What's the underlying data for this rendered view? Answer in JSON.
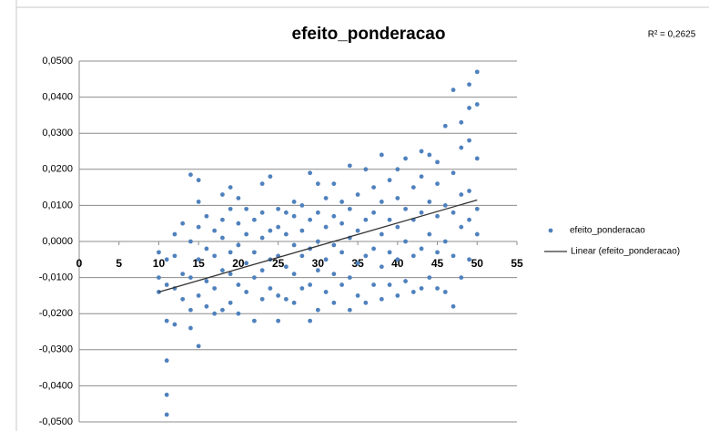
{
  "chart_data": {
    "type": "scatter",
    "title": "efeito_ponderacao",
    "annotation": "R² = 0,2625",
    "xlim": [
      0,
      55
    ],
    "xticks": [
      0,
      5,
      10,
      15,
      20,
      25,
      30,
      35,
      40,
      45,
      50,
      55
    ],
    "ylim": [
      -0.05,
      0.05
    ],
    "yticks": [
      {
        "value": -0.05,
        "label": "-0,0500"
      },
      {
        "value": -0.04,
        "label": "-0,0400"
      },
      {
        "value": -0.03,
        "label": "-0,0300"
      },
      {
        "value": -0.02,
        "label": "-0,0200"
      },
      {
        "value": -0.01,
        "label": "-0,0100"
      },
      {
        "value": 0,
        "label": "0,0000"
      },
      {
        "value": 0.01,
        "label": "0,0100"
      },
      {
        "value": 0.02,
        "label": "0,0200"
      },
      {
        "value": 0.03,
        "label": "0,0300"
      },
      {
        "value": 0.04,
        "label": "0,0400"
      },
      {
        "value": 0.05,
        "label": "0,0500"
      }
    ],
    "grid": true,
    "legend": "right",
    "series": [
      {
        "name": "efeito_ponderacao",
        "color": "#4f81bd",
        "x": [
          10,
          10,
          10,
          11,
          11,
          11,
          11,
          11,
          11,
          12,
          12,
          12,
          12,
          13,
          13,
          13,
          14,
          14,
          14,
          14,
          14,
          15,
          15,
          15,
          15,
          15,
          15,
          16,
          16,
          16,
          16,
          17,
          17,
          17,
          17,
          18,
          18,
          18,
          18,
          18,
          19,
          19,
          19,
          19,
          19,
          20,
          20,
          20,
          20,
          20,
          21,
          21,
          21,
          21,
          22,
          22,
          22,
          22,
          23,
          23,
          23,
          23,
          23,
          24,
          24,
          24,
          24,
          25,
          25,
          25,
          25,
          25,
          26,
          26,
          26,
          26,
          27,
          27,
          27,
          27,
          27,
          28,
          28,
          28,
          28,
          29,
          29,
          29,
          29,
          29,
          30,
          30,
          30,
          30,
          30,
          31,
          31,
          31,
          31,
          32,
          32,
          32,
          32,
          32,
          33,
          33,
          33,
          33,
          34,
          34,
          34,
          34,
          34,
          35,
          35,
          35,
          35,
          36,
          36,
          36,
          36,
          37,
          37,
          37,
          37,
          38,
          38,
          38,
          38,
          38,
          39,
          39,
          39,
          39,
          40,
          40,
          40,
          40,
          40,
          41,
          41,
          41,
          41,
          42,
          42,
          42,
          42,
          43,
          43,
          43,
          43,
          43,
          44,
          44,
          44,
          44,
          45,
          45,
          45,
          45,
          45,
          46,
          46,
          46,
          46,
          47,
          47,
          47,
          47,
          47,
          48,
          48,
          48,
          48,
          48,
          49,
          49,
          49,
          49,
          49,
          49,
          50,
          50,
          50,
          50,
          50
        ],
        "values": [
          -0.014,
          -0.01,
          -0.003,
          -0.048,
          -0.0425,
          -0.033,
          -0.022,
          -0.012,
          -0.005,
          -0.023,
          -0.013,
          -0.004,
          0.002,
          -0.016,
          -0.009,
          0.005,
          -0.024,
          -0.019,
          -0.01,
          0,
          0.0185,
          -0.029,
          -0.015,
          -0.005,
          0.004,
          0.011,
          0.017,
          -0.018,
          -0.011,
          -0.002,
          0.007,
          -0.02,
          -0.013,
          -0.004,
          0.003,
          -0.019,
          -0.008,
          0.001,
          0.006,
          0.013,
          -0.017,
          -0.009,
          -0.003,
          0.009,
          0.015,
          -0.02,
          -0.012,
          -0.001,
          0.005,
          0.012,
          -0.014,
          -0.006,
          0.002,
          0.009,
          -0.022,
          -0.01,
          -0.003,
          0.006,
          -0.016,
          -0.008,
          0.001,
          0.008,
          0.016,
          -0.013,
          -0.005,
          0.003,
          0.018,
          -0.022,
          -0.015,
          -0.004,
          0.004,
          0.009,
          -0.016,
          -0.007,
          0.002,
          0.008,
          -0.017,
          -0.009,
          -0.001,
          0.007,
          0.011,
          -0.013,
          -0.004,
          0.003,
          0.01,
          -0.022,
          -0.012,
          -0.002,
          0.006,
          0.019,
          -0.019,
          -0.008,
          0,
          0.008,
          0.016,
          -0.014,
          -0.005,
          0.004,
          0.012,
          -0.017,
          -0.009,
          -0.001,
          0.007,
          0.016,
          -0.012,
          -0.003,
          0.005,
          0.011,
          -0.019,
          -0.01,
          0.001,
          0.009,
          0.021,
          -0.015,
          -0.006,
          0.003,
          0.013,
          -0.017,
          -0.004,
          0.006,
          0.02,
          -0.012,
          -0.002,
          0.008,
          0.015,
          -0.016,
          -0.007,
          0.002,
          0.011,
          0.024,
          -0.012,
          -0.003,
          0.006,
          0.017,
          -0.015,
          -0.005,
          0.004,
          0.012,
          0.02,
          -0.011,
          0,
          0.009,
          0.023,
          -0.014,
          -0.004,
          0.006,
          0.015,
          -0.013,
          -0.002,
          0.008,
          0.018,
          0.025,
          -0.01,
          0.002,
          0.011,
          0.024,
          -0.013,
          -0.003,
          0.007,
          0.016,
          0.022,
          -0.014,
          0,
          0.01,
          0.032,
          -0.018,
          -0.004,
          0.008,
          0.019,
          0.042,
          -0.01,
          0.004,
          0.013,
          0.026,
          0.033,
          -0.005,
          0.006,
          0.014,
          0.028,
          0.037,
          0.0435,
          0.002,
          0.009,
          0.023,
          0.038,
          0.047
        ]
      },
      {
        "name": "Linear (efeito_ponderacao)",
        "color": "#333333",
        "line": true,
        "x": [
          10,
          50
        ],
        "values": [
          -0.014,
          0.0115
        ]
      }
    ]
  }
}
